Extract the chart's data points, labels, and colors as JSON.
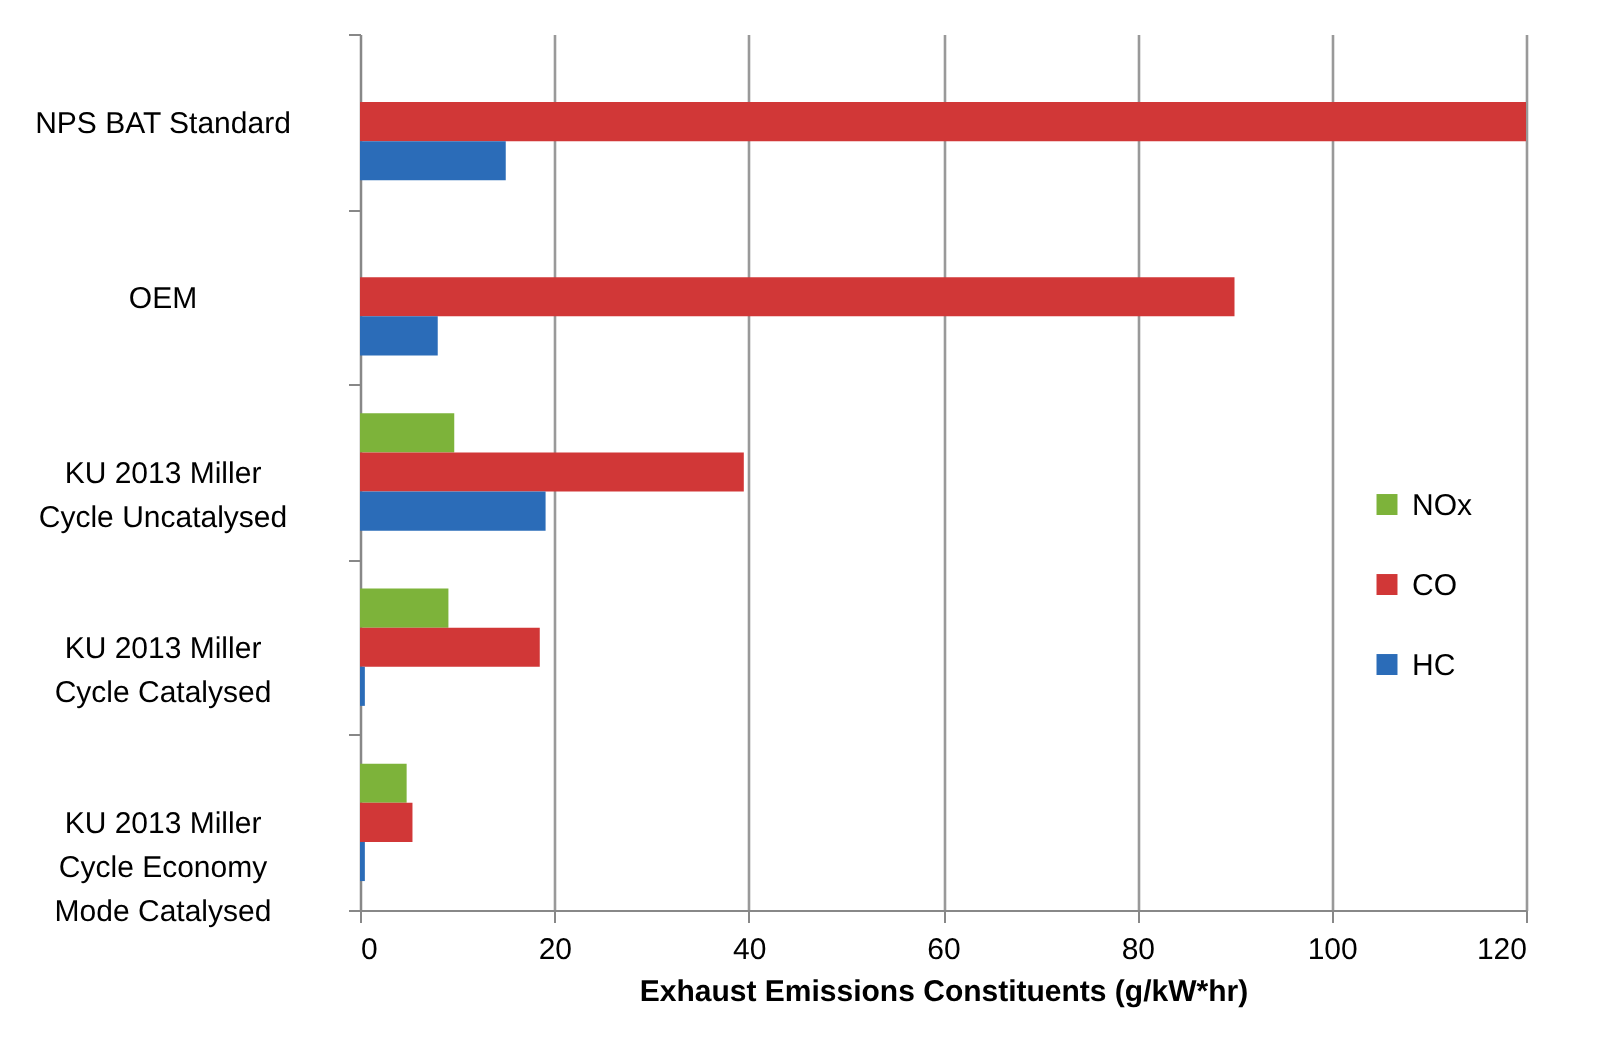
{
  "chart_data": {
    "type": "bar",
    "orientation": "horizontal",
    "categories": [
      "NPS BAT Standard",
      "OEM",
      "KU 2013 Miller Cycle Uncatalysed",
      "KU 2013 Miller Cycle Catalysed",
      "KU 2013 Miller Cycle Economy Mode Catalysed"
    ],
    "series": [
      {
        "name": "NOx",
        "color": "#7db33a",
        "values": [
          null,
          null,
          9.7,
          9.1,
          4.8
        ]
      },
      {
        "name": "CO",
        "color": "#d13737",
        "values": [
          120,
          90,
          39.5,
          18.5,
          5.4
        ]
      },
      {
        "name": "HC",
        "color": "#2b6cb8",
        "values": [
          15,
          8,
          19.1,
          0.5,
          0.5
        ]
      }
    ],
    "xlabel": "Exhaust Emissions Constituents (g/kW*hr)",
    "xlim": [
      0,
      120
    ],
    "xticks": [
      0,
      20,
      40,
      60,
      80,
      100,
      120
    ],
    "grid": "x",
    "legend": "right"
  }
}
